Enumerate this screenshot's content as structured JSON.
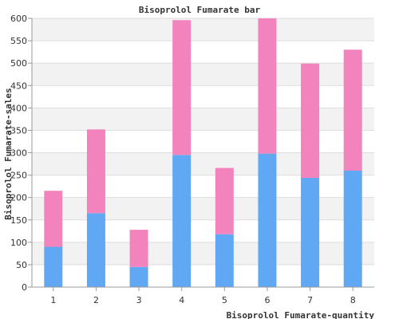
{
  "chart_data": {
    "type": "bar",
    "stacked": true,
    "title": "Bisoprolol Fumarate bar",
    "xlabel": "Bisoprolol Fumarate-quantity",
    "ylabel": "Bisoprolol Fumarate-sales",
    "categories": [
      "1",
      "2",
      "3",
      "4",
      "5",
      "6",
      "7",
      "8"
    ],
    "series": [
      {
        "color": "#60a8f4",
        "values": [
          90,
          165,
          45,
          295,
          118,
          298,
          244,
          260
        ]
      },
      {
        "color": "#f283bc",
        "values": [
          125,
          187,
          83,
          301,
          148,
          302,
          255,
          270
        ]
      }
    ],
    "ylim": [
      0,
      600
    ],
    "yticks": [
      0,
      50,
      100,
      150,
      200,
      250,
      300,
      350,
      400,
      450,
      500,
      550,
      600
    ],
    "grid": true,
    "band_colors": [
      "#f2f2f2",
      "#ffffff"
    ]
  }
}
